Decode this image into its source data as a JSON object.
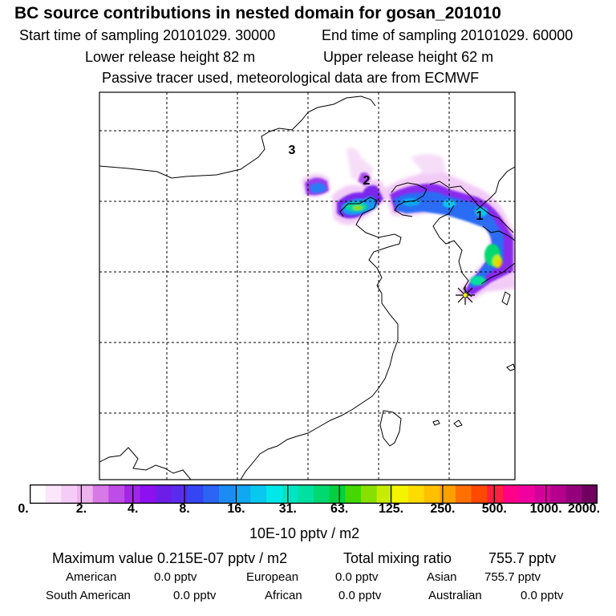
{
  "header": {
    "title": "BC  source contributions in nested domain for gosan_201010",
    "start_time": "Start time of sampling 20101029. 30000",
    "end_time": "End time of sampling 20101029. 60000",
    "lower_release": "Lower release height   82 m",
    "upper_release": "Upper release height   62 m",
    "tracer_note": "Passive tracer used, meteorological data are from ECMWF"
  },
  "map": {
    "region_labels": [
      "3",
      "2",
      "1"
    ],
    "receptor": "gosan",
    "colors": {
      "frame": "#000000",
      "grid": "#000000",
      "coast": "#000000"
    }
  },
  "legend": {
    "unit": "10E-10 pptv / m2",
    "ticks": [
      "0.",
      "2.",
      "4.",
      "8.",
      "16.",
      "31.",
      "63.",
      "125.",
      "250.",
      "500.",
      "1000.",
      "2000."
    ],
    "colors": [
      "#ffffff",
      "#fbe6fb",
      "#f5ccf5",
      "#eeb2ee",
      "#d779e6",
      "#c04ce8",
      "#a226e8",
      "#8c10f0",
      "#6c1ee8",
      "#5a2cf0",
      "#3446f4",
      "#2c64f4",
      "#1c8cf4",
      "#10a8f0",
      "#08c8f0",
      "#00e8e8",
      "#00e4c4",
      "#00e0a0",
      "#00d870",
      "#00d040",
      "#44d800",
      "#88e000",
      "#c8ec00",
      "#f4f400",
      "#ffdc00",
      "#ffc000",
      "#ffa000",
      "#ff7000",
      "#ff4800",
      "#ff2040",
      "#ff0088",
      "#f000a0",
      "#d4009c",
      "#b4008c",
      "#94007c",
      "#700060"
    ]
  },
  "stats": {
    "max_label": "Maximum value  0.215E-07 pptv / m2",
    "total_label": "Total mixing ratio",
    "total_value": "755.7 pptv",
    "regions": [
      {
        "name": "American",
        "value": "0.0 pptv"
      },
      {
        "name": "European",
        "value": "0.0 pptv"
      },
      {
        "name": "Asian",
        "value": "755.7 pptv"
      },
      {
        "name": "South American",
        "value": "0.0 pptv"
      },
      {
        "name": "African",
        "value": "0.0 pptv"
      },
      {
        "name": "Australian",
        "value": "0.0 pptv"
      }
    ]
  }
}
